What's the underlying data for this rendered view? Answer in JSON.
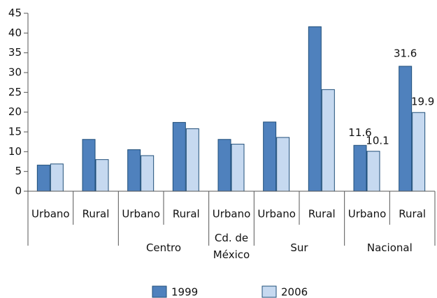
{
  "chart_data": {
    "type": "bar",
    "categories": [
      "Urbano",
      "Rural",
      "Urbano",
      "Rural",
      "Urbano",
      "Urbano",
      "Rural",
      "Urbano",
      "Rural"
    ],
    "groups": [
      {
        "name": null,
        "span": 2
      },
      {
        "name": "Centro",
        "span": 2
      },
      {
        "name": "Cd. de México",
        "span": 1
      },
      {
        "name": "Sur",
        "span": 2
      },
      {
        "name": "Nacional",
        "span": 2
      }
    ],
    "series": [
      {
        "name": "1999",
        "color": "#4f81bd",
        "values": [
          6.6,
          13.1,
          10.5,
          17.4,
          13.1,
          17.5,
          41.6,
          11.6,
          31.6
        ],
        "value_labels": [
          null,
          null,
          null,
          null,
          null,
          null,
          null,
          "11.6",
          "31.6"
        ]
      },
      {
        "name": "2006",
        "color": "#c6d9f0",
        "values": [
          6.9,
          8.0,
          9.0,
          15.8,
          11.9,
          13.6,
          25.7,
          10.1,
          19.9
        ],
        "value_labels": [
          null,
          null,
          null,
          null,
          null,
          null,
          null,
          "10.1",
          "19.9"
        ]
      }
    ],
    "ylim": [
      0,
      45
    ],
    "yticks": [
      0,
      5,
      10,
      15,
      20,
      25,
      30,
      35,
      40,
      45
    ],
    "legend": "bottom"
  }
}
